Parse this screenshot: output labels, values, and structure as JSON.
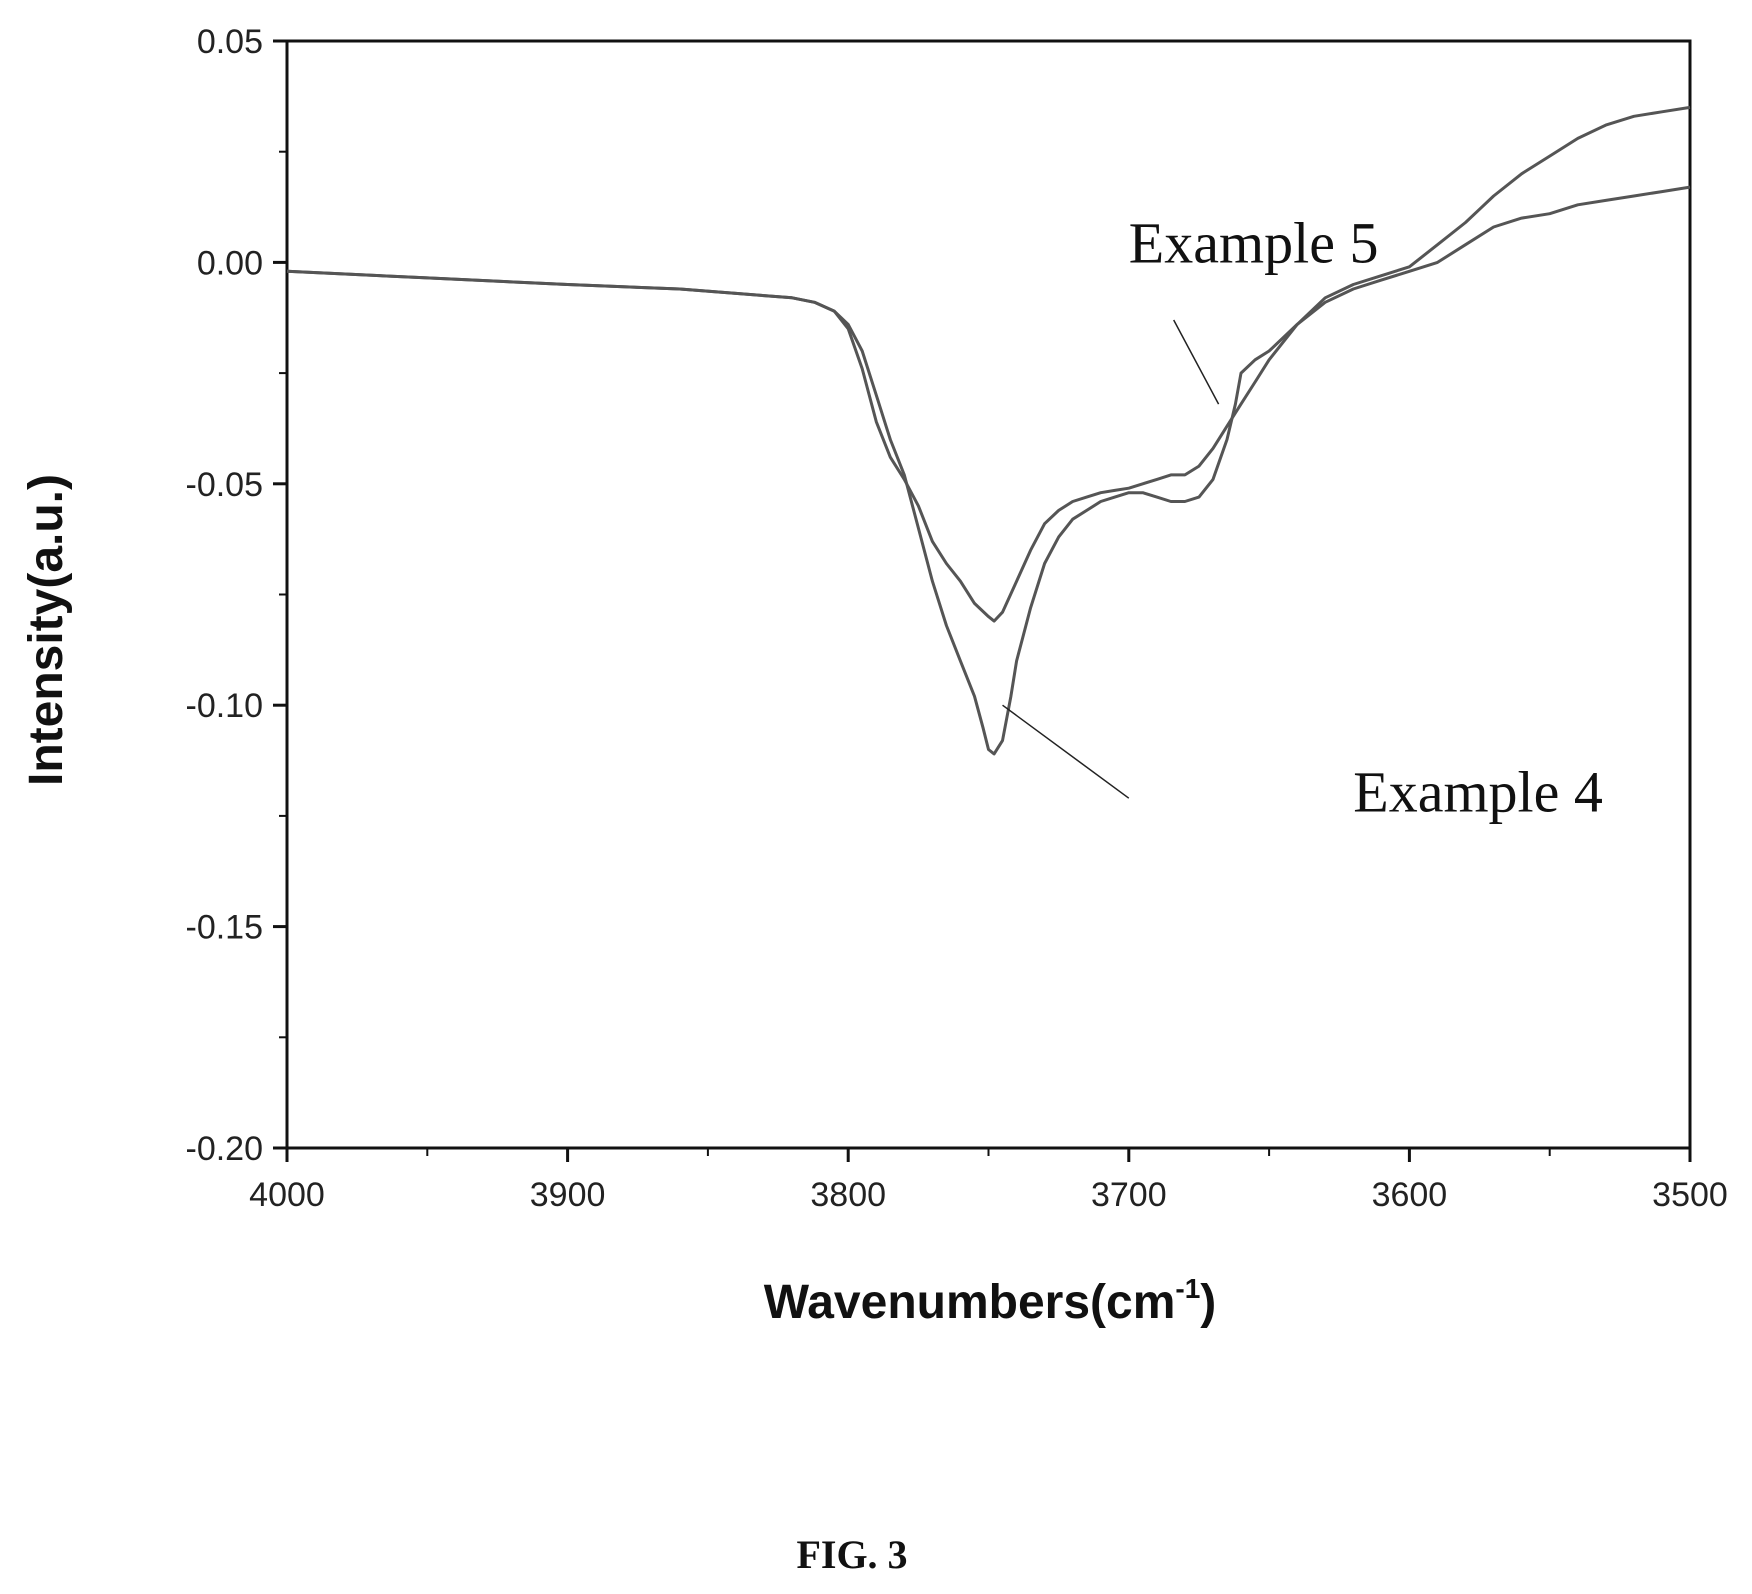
{
  "chart_data": {
    "type": "line",
    "xlabel": "Wavenumbers(cm",
    "xlabel_sup": "-1",
    "xlabel_end": ")",
    "ylabel": "Intensity(a.u.)",
    "xlim": [
      4000,
      3500
    ],
    "ylim": [
      -0.2,
      0.05
    ],
    "x_ticks": [
      4000,
      3900,
      3800,
      3700,
      3600,
      3500
    ],
    "x_tick_labels": [
      "4000",
      "3900",
      "3800",
      "3700",
      "3600",
      "3500"
    ],
    "y_ticks": [
      0.05,
      0.0,
      -0.05,
      -0.1,
      -0.15,
      -0.2
    ],
    "y_tick_labels": [
      "0.05",
      "0.00",
      "-0.05",
      "-0.10",
      "-0.15",
      "-0.20"
    ],
    "grid": false,
    "legend": "none",
    "line_color": "#555555",
    "annotations": [
      {
        "text": "Example 5",
        "series": "Example 5",
        "point": [
          3668,
          -0.032
        ],
        "text_pos": [
          3700,
          0.0
        ],
        "leader": [
          3684,
          -0.013
        ]
      },
      {
        "text": "Example 4",
        "series": "Example 4",
        "point": [
          3745,
          -0.1
        ],
        "text_pos": [
          3620,
          -0.124
        ],
        "leader": [
          3700,
          -0.121
        ]
      }
    ],
    "series": [
      {
        "name": "Example 5",
        "x": [
          4000,
          3950,
          3900,
          3860,
          3840,
          3830,
          3820,
          3812,
          3805,
          3800,
          3795,
          3790,
          3785,
          3780,
          3775,
          3770,
          3765,
          3760,
          3755,
          3750,
          3748,
          3745,
          3740,
          3735,
          3730,
          3725,
          3720,
          3715,
          3710,
          3705,
          3700,
          3695,
          3690,
          3685,
          3680,
          3675,
          3670,
          3665,
          3660,
          3655,
          3650,
          3640,
          3630,
          3620,
          3610,
          3600,
          3590,
          3580,
          3575,
          3570,
          3560,
          3550,
          3540,
          3530,
          3520,
          3510,
          3500
        ],
        "y": [
          -0.002,
          -0.0035,
          -0.005,
          -0.006,
          -0.007,
          -0.0075,
          -0.008,
          -0.009,
          -0.011,
          -0.015,
          -0.024,
          -0.036,
          -0.044,
          -0.049,
          -0.055,
          -0.063,
          -0.068,
          -0.072,
          -0.077,
          -0.08,
          -0.081,
          -0.079,
          -0.072,
          -0.065,
          -0.059,
          -0.056,
          -0.054,
          -0.053,
          -0.052,
          -0.0515,
          -0.051,
          -0.05,
          -0.049,
          -0.048,
          -0.048,
          -0.046,
          -0.042,
          -0.037,
          -0.032,
          -0.027,
          -0.022,
          -0.014,
          -0.008,
          -0.005,
          -0.003,
          -0.001,
          0.004,
          0.009,
          0.012,
          0.015,
          0.02,
          0.024,
          0.028,
          0.031,
          0.033,
          0.034,
          0.035
        ]
      },
      {
        "name": "Example 4",
        "x": [
          4000,
          3950,
          3900,
          3860,
          3840,
          3830,
          3820,
          3812,
          3805,
          3800,
          3795,
          3790,
          3785,
          3780,
          3775,
          3770,
          3765,
          3760,
          3755,
          3752,
          3750,
          3748,
          3745,
          3742,
          3740,
          3735,
          3730,
          3725,
          3720,
          3715,
          3710,
          3705,
          3700,
          3695,
          3690,
          3685,
          3680,
          3675,
          3670,
          3665,
          3662,
          3660,
          3655,
          3650,
          3640,
          3630,
          3620,
          3610,
          3600,
          3590,
          3580,
          3570,
          3560,
          3550,
          3540,
          3530,
          3520,
          3510,
          3500
        ],
        "y": [
          -0.002,
          -0.0035,
          -0.005,
          -0.006,
          -0.007,
          -0.0075,
          -0.008,
          -0.009,
          -0.011,
          -0.014,
          -0.02,
          -0.03,
          -0.04,
          -0.048,
          -0.06,
          -0.072,
          -0.082,
          -0.09,
          -0.098,
          -0.105,
          -0.11,
          -0.111,
          -0.108,
          -0.098,
          -0.09,
          -0.078,
          -0.068,
          -0.062,
          -0.058,
          -0.056,
          -0.054,
          -0.053,
          -0.052,
          -0.052,
          -0.053,
          -0.054,
          -0.054,
          -0.053,
          -0.049,
          -0.04,
          -0.032,
          -0.025,
          -0.022,
          -0.02,
          -0.014,
          -0.009,
          -0.006,
          -0.004,
          -0.002,
          0.0,
          0.004,
          0.008,
          0.01,
          0.011,
          0.013,
          0.014,
          0.015,
          0.016,
          0.017
        ]
      }
    ]
  },
  "caption": "FIG. 3"
}
